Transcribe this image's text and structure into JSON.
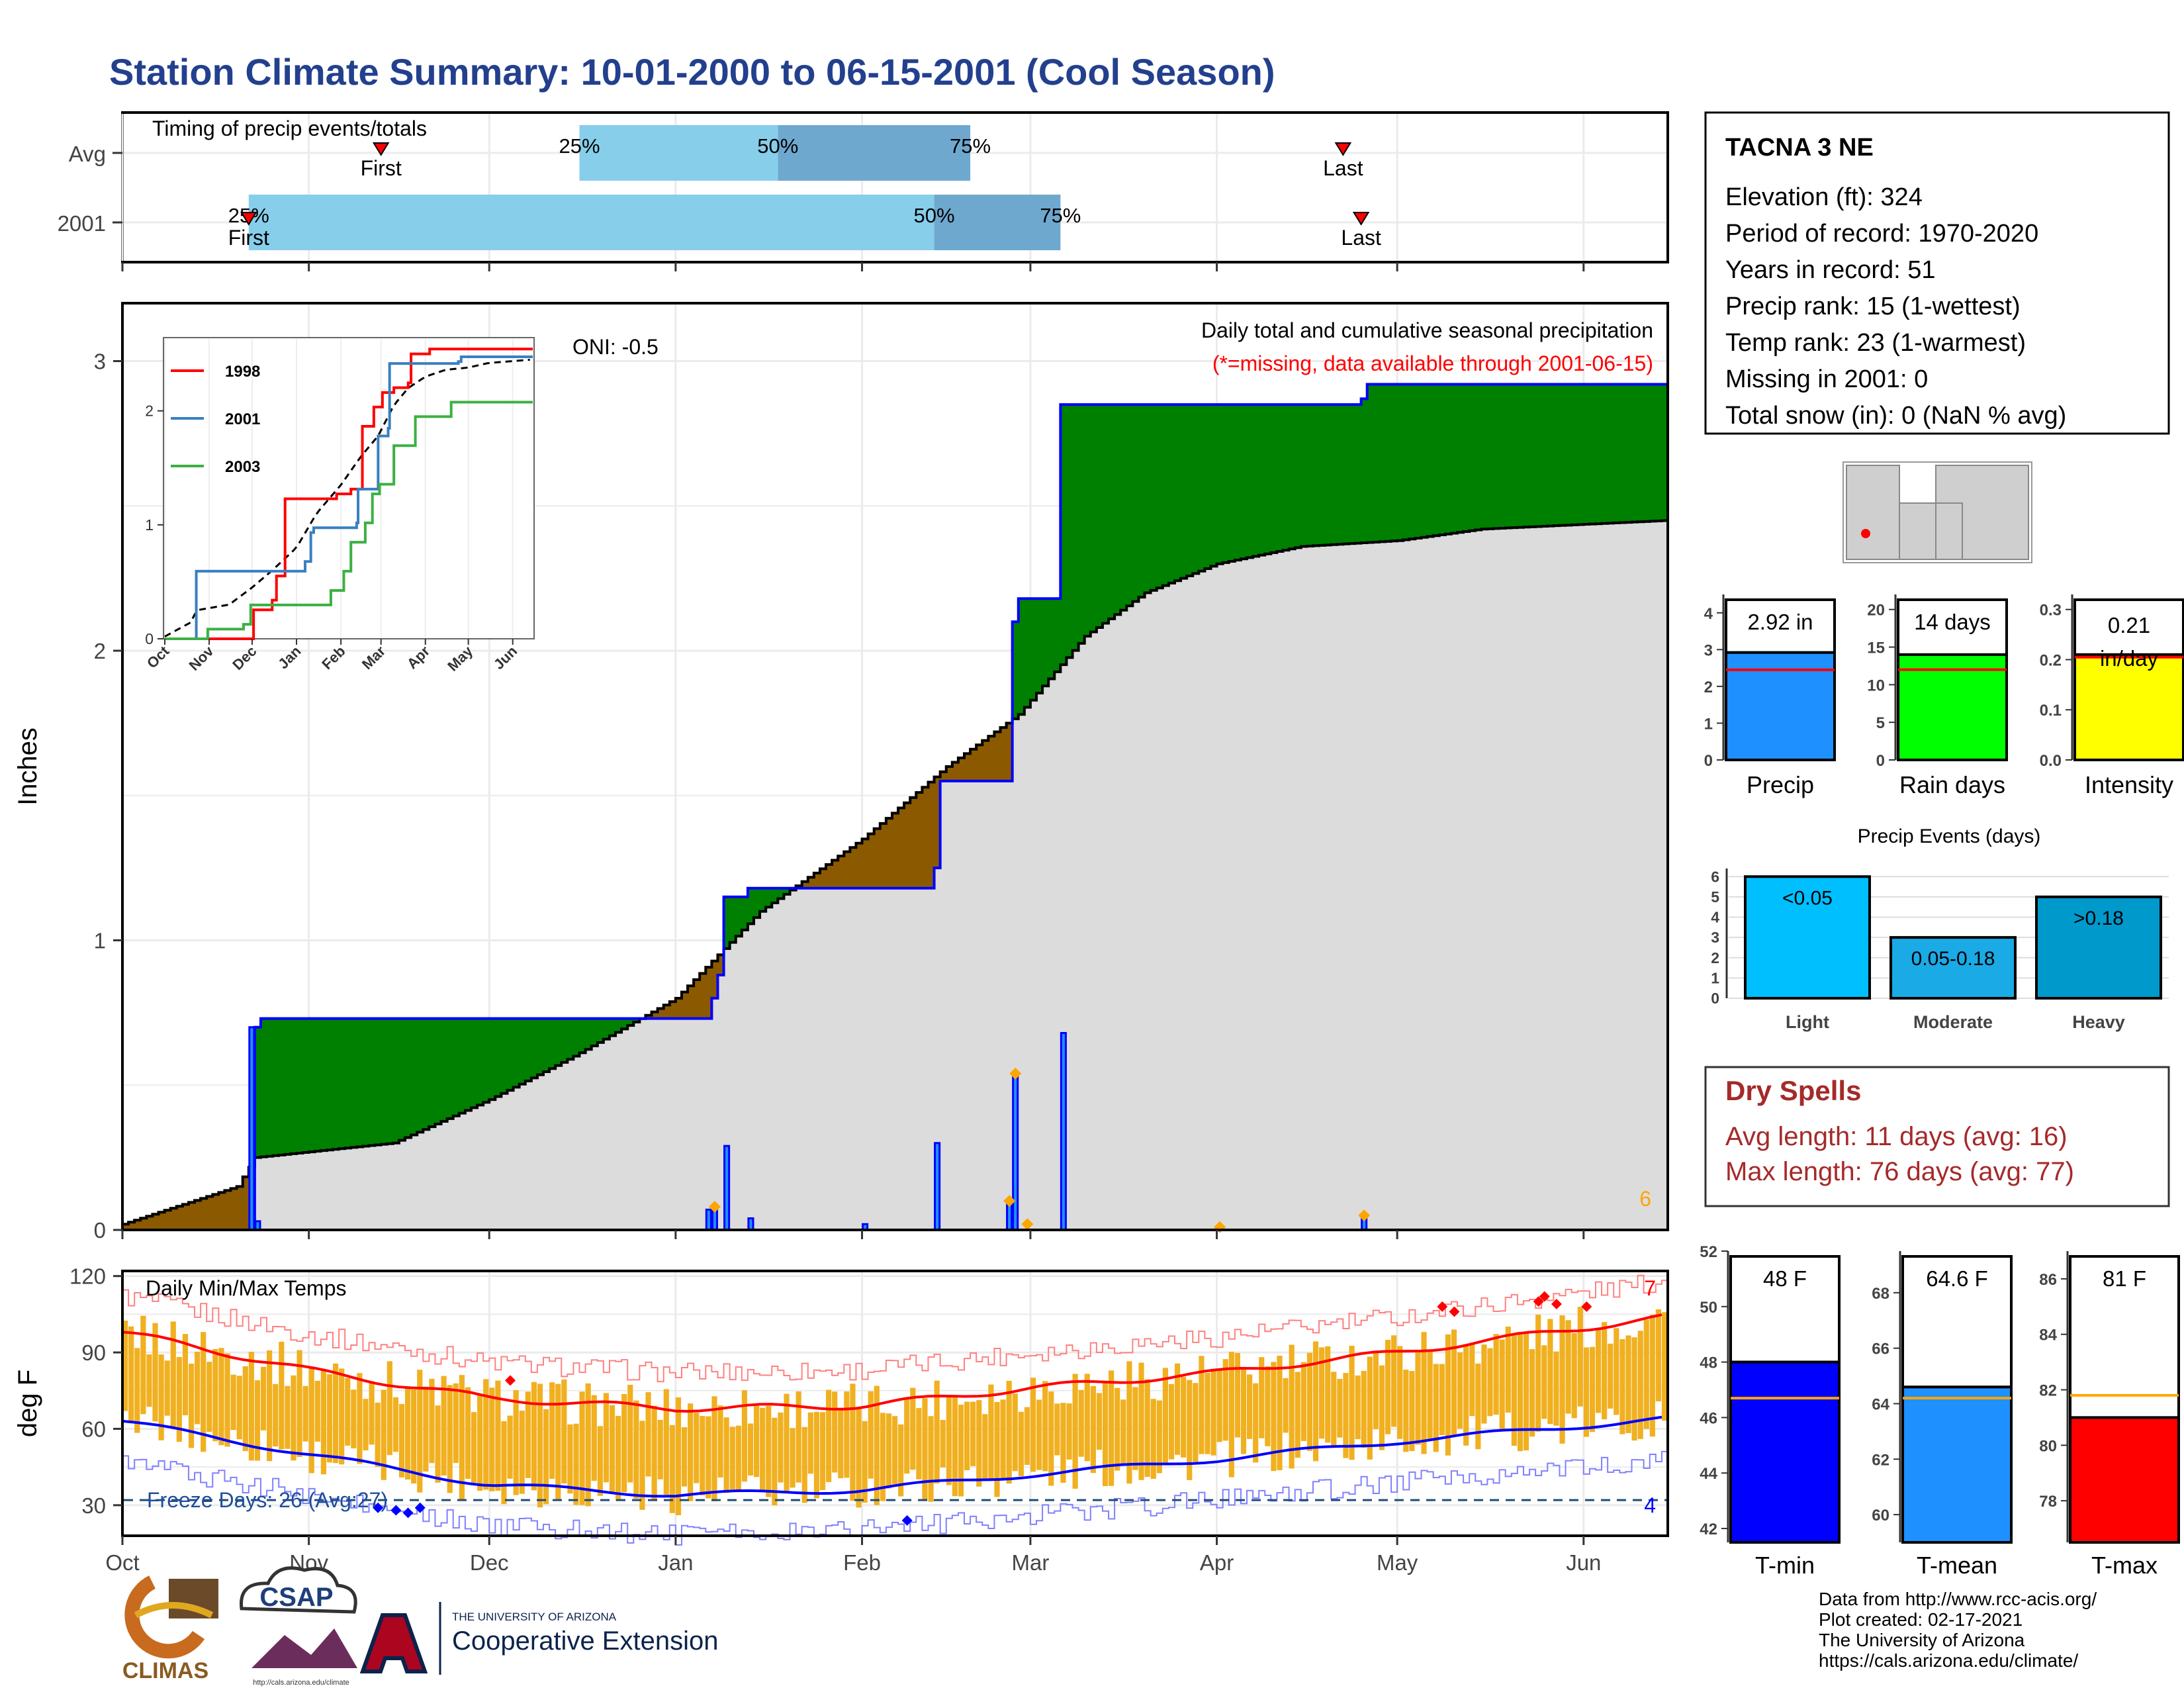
{
  "title": "Station Climate Summary: 10-01-2000 to 06-15-2001 (Cool Season)",
  "colors": {
    "title": "#23408e",
    "q_light": "#87ceeb",
    "q_dark": "#6fa8cf",
    "green": "#008000",
    "brown": "#8b5a00",
    "gray_fill": "#dcdcdc",
    "blue_line": "#0000ff",
    "red": "#ff0000",
    "orange_bar": "#f0b020",
    "dry_red": "#a52a2a",
    "freeze_blue": "#1f4e9a"
  },
  "timing_panel": {
    "title": "Timing of precip events/totals",
    "rows": [
      "Avg",
      "2001"
    ],
    "first_label": "First",
    "last_label": "Last",
    "avg": {
      "first": "Nov 13",
      "q25": "Dec 16",
      "q50": "Jan 18",
      "q75": "Feb 19",
      "last": "Apr 22"
    },
    "y2001": {
      "first": "Oct 22",
      "q25": "Oct 22",
      "q50": "Feb 13",
      "q75": "Mar 6",
      "last": "Apr 25"
    },
    "q_labels": [
      "25%",
      "50%",
      "75%"
    ]
  },
  "month_ticks": [
    "Oct",
    "Nov",
    "Dec",
    "Jan",
    "Feb",
    "Mar",
    "Apr",
    "May",
    "Jun"
  ],
  "precip_panel": {
    "ylabel": "Inches",
    "yticks": [
      0,
      1,
      2,
      3
    ],
    "oni": "ONI: -0.5",
    "subtitle": "Daily total and cumulative seasonal precipitation",
    "missing_note": "(*=missing, data available through 2001-06-15)",
    "count_label": "6",
    "inset": {
      "series": [
        {
          "name": "1998",
          "color": "#ff0000"
        },
        {
          "name": "2001",
          "color": "#3a7fc1"
        },
        {
          "name": "2003",
          "color": "#3cb043"
        }
      ],
      "yticks": [
        0,
        1,
        2
      ],
      "xticks": [
        "Oct",
        "Nov",
        "Dec",
        "Jan",
        "Feb",
        "Mar",
        "Apr",
        "May",
        "Jun"
      ]
    }
  },
  "chart_data": [
    {
      "type": "area",
      "title": "Daily total and cumulative seasonal precipitation",
      "ylabel": "Inches",
      "ylim": [
        0,
        3.2
      ],
      "cumulative_2001": [
        [
          "2000-10-01",
          0.0
        ],
        [
          "2000-10-22",
          0.0
        ],
        [
          "2000-10-23",
          0.7
        ],
        [
          "2000-10-24",
          0.73
        ],
        [
          "2001-01-06",
          0.73
        ],
        [
          "2001-01-07",
          0.8
        ],
        [
          "2001-01-08",
          0.88
        ],
        [
          "2001-01-09",
          1.15
        ],
        [
          "2001-01-13",
          1.18
        ],
        [
          "2001-02-13",
          1.25
        ],
        [
          "2001-02-14",
          1.55
        ],
        [
          "2001-02-25",
          1.55
        ],
        [
          "2001-02-26",
          2.1
        ],
        [
          "2001-02-27",
          2.18
        ],
        [
          "2001-03-05",
          2.18
        ],
        [
          "2001-03-06",
          2.85
        ],
        [
          "2001-04-25",
          2.87
        ],
        [
          "2001-04-26",
          2.92
        ],
        [
          "2001-06-15",
          2.92
        ]
      ],
      "cumulative_avg": [
        [
          "2000-10-01",
          0.02
        ],
        [
          "2000-10-20",
          0.15
        ],
        [
          "2000-10-23",
          0.25
        ],
        [
          "2000-11-15",
          0.3
        ],
        [
          "2000-12-01",
          0.45
        ],
        [
          "2000-12-15",
          0.6
        ],
        [
          "2001-01-01",
          0.8
        ],
        [
          "2001-01-15",
          1.1
        ],
        [
          "2001-02-01",
          1.35
        ],
        [
          "2001-02-15",
          1.6
        ],
        [
          "2001-02-27",
          1.78
        ],
        [
          "2001-03-10",
          2.05
        ],
        [
          "2001-03-20",
          2.2
        ],
        [
          "2001-04-01",
          2.3
        ],
        [
          "2001-04-15",
          2.36
        ],
        [
          "2001-05-01",
          2.38
        ],
        [
          "2001-05-15",
          2.42
        ],
        [
          "2001-06-15",
          2.45
        ]
      ],
      "daily_precip": [
        [
          "2000-10-22",
          0.7
        ],
        [
          "2000-10-23",
          0.03
        ],
        [
          "2001-01-06",
          0.07
        ],
        [
          "2001-01-07",
          0.08
        ],
        [
          "2001-01-09",
          0.29
        ],
        [
          "2001-01-13",
          0.04
        ],
        [
          "2001-02-01",
          0.02
        ],
        [
          "2001-02-13",
          0.3
        ],
        [
          "2001-02-25",
          0.09
        ],
        [
          "2001-02-26",
          0.54
        ],
        [
          "2001-03-06",
          0.68
        ],
        [
          "2001-04-25",
          0.05
        ]
      ]
    },
    {
      "type": "line",
      "title": "Daily Min/Max Temps",
      "ylabel": "deg F",
      "ylim": [
        18,
        122
      ],
      "freeze_line": 32,
      "freeze_label": "Freeze Days: 26 (Avg:27)",
      "count_high": "7",
      "count_low": "4",
      "avg_max": [
        [
          "2000-10-01",
          98
        ],
        [
          "2000-11-01",
          83
        ],
        [
          "2000-12-01",
          72
        ],
        [
          "2001-01-01",
          68
        ],
        [
          "2001-02-01",
          69
        ],
        [
          "2001-03-01",
          76
        ],
        [
          "2001-04-01",
          82
        ],
        [
          "2001-05-01",
          90
        ],
        [
          "2001-06-15",
          104
        ]
      ],
      "avg_min": [
        [
          "2000-10-01",
          63
        ],
        [
          "2000-11-01",
          50
        ],
        [
          "2000-12-01",
          38
        ],
        [
          "2001-01-01",
          34
        ],
        [
          "2001-02-01",
          36
        ],
        [
          "2001-03-01",
          42
        ],
        [
          "2001-04-01",
          48
        ],
        [
          "2001-05-01",
          55
        ],
        [
          "2001-06-15",
          64
        ]
      ]
    },
    {
      "type": "bar",
      "categories": [
        "Precip"
      ],
      "values": [
        2.92
      ],
      "label": "2.92 in",
      "avg": 2.45,
      "ylim": [
        0,
        4.5
      ],
      "yticks": [
        0,
        1,
        2,
        3,
        4
      ],
      "color": "#1e90ff"
    },
    {
      "type": "bar",
      "categories": [
        "Rain days"
      ],
      "values": [
        14
      ],
      "label": "14 days",
      "avg": 12,
      "ylim": [
        0,
        22
      ],
      "yticks": [
        0,
        5,
        10,
        15,
        20
      ],
      "color": "#00ff00"
    },
    {
      "type": "bar",
      "categories": [
        "Intensity"
      ],
      "values": [
        0.21
      ],
      "label": "0.21 in/day",
      "avg": 0.205,
      "ylim": [
        0,
        0.33
      ],
      "yticks": [
        "0.0",
        "0.1",
        "0.2",
        "0.3"
      ],
      "color": "#ffff00"
    },
    {
      "type": "bar",
      "title": "Precip Events (days)",
      "categories": [
        "Light",
        "Moderate",
        "Heavy"
      ],
      "values": [
        6,
        3,
        5
      ],
      "labels": [
        "<0.05",
        "0.05-0.18",
        ">0.18"
      ],
      "colors": [
        "#00bfff",
        "#1aaae6",
        "#0099cc"
      ],
      "ylim": [
        0,
        6.4
      ],
      "yticks": [
        0,
        1,
        2,
        3,
        4,
        5,
        6
      ]
    },
    {
      "type": "bar",
      "categories": [
        "T-min"
      ],
      "values": [
        48
      ],
      "label": "48 F",
      "avg": 46.7,
      "ylim": [
        41.5,
        52
      ],
      "yticks": [
        42,
        44,
        46,
        48,
        50,
        52
      ],
      "color": "#0000ff"
    },
    {
      "type": "bar",
      "categories": [
        "T-mean"
      ],
      "values": [
        64.6
      ],
      "label": "64.6 F",
      "avg": 64.2,
      "ylim": [
        59,
        69.5
      ],
      "yticks": [
        60,
        62,
        64,
        66,
        68
      ],
      "color": "#1e90ff"
    },
    {
      "type": "bar",
      "categories": [
        "T-max"
      ],
      "values": [
        81
      ],
      "label": "81 F",
      "avg": 81.8,
      "ylim": [
        76.5,
        87
      ],
      "yticks": [
        78,
        80,
        82,
        84,
        86
      ],
      "color": "#ff0000"
    }
  ],
  "temp_panel": {
    "title": "Daily Min/Max Temps",
    "ylabel": "deg F",
    "yticks": [
      30,
      60,
      90,
      120
    ]
  },
  "station_info": {
    "name": "TACNA 3 NE",
    "lines": [
      "Elevation (ft): 324",
      "Period of record: 1970-2020",
      "Years in record: 51",
      "Precip rank: 15 (1-wettest)",
      "Temp rank: 23 (1-warmest)",
      "Missing in 2001: 0",
      "Total snow (in): 0 (NaN % avg)"
    ]
  },
  "dry_spells": {
    "title": "Dry Spells",
    "avg_length": "Avg length: 11 days (avg: 16)",
    "max_length": "Max length: 76 days (avg: 77)"
  },
  "footer": {
    "lines": [
      "Data from http://www.rcc-acis.org/",
      "Plot created: 02-17-2021",
      "The University of Arizona",
      "https://cals.arizona.edu/climate/"
    ],
    "logo_climas": "CLIMAS",
    "logo_csap": "CSAP",
    "logo_csap_url": "http://cals.arizona.edu/climate",
    "logo_ua_top": "THE UNIVERSITY OF ARIZONA",
    "logo_ua_main": "Cooperative Extension"
  }
}
